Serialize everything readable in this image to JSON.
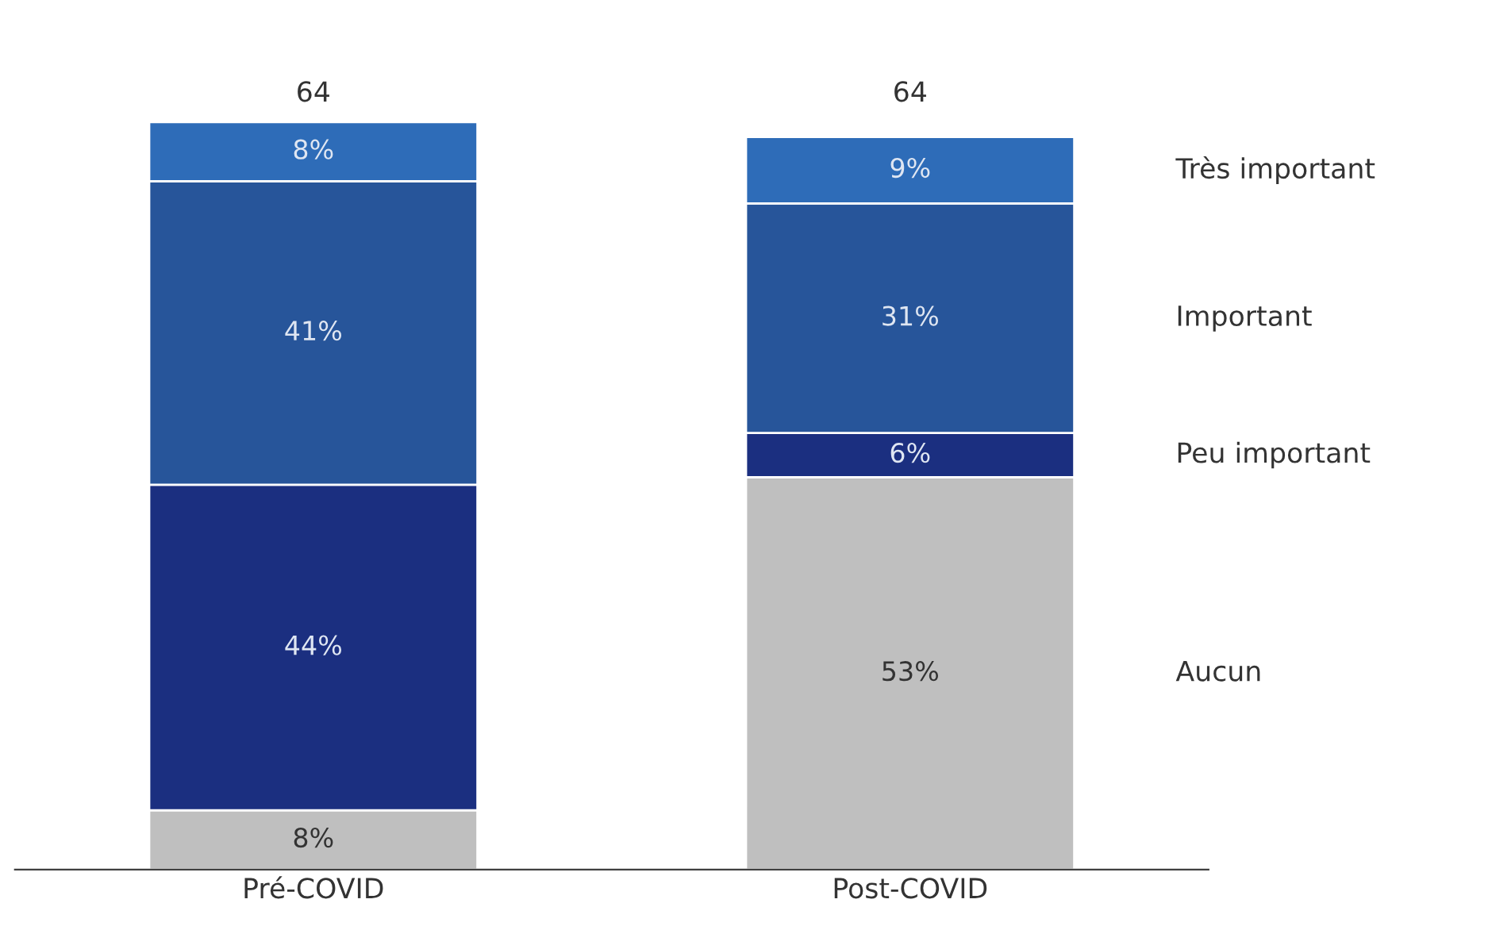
{
  "chart_data": {
    "type": "bar",
    "stacked": true,
    "categories": [
      "Pré-COVID",
      "Post-COVID"
    ],
    "series": [
      {
        "name": "Aucun",
        "color": "#bfbfbf",
        "values": [
          8,
          53
        ],
        "value_labels": [
          "8%",
          "53%"
        ]
      },
      {
        "name": "Peu important",
        "color": "#1b2f80",
        "values": [
          44,
          6
        ],
        "value_labels": [
          "44%",
          "6%"
        ]
      },
      {
        "name": "Important",
        "color": "#27559a",
        "values": [
          41,
          31
        ],
        "value_labels": [
          "41%",
          "31%"
        ]
      },
      {
        "name": "Très important",
        "color": "#2e6cb8",
        "values": [
          8,
          9
        ],
        "value_labels": [
          "8%",
          "9%"
        ]
      }
    ],
    "annotations": [
      "64",
      "64"
    ],
    "grid": false,
    "legend": false
  }
}
